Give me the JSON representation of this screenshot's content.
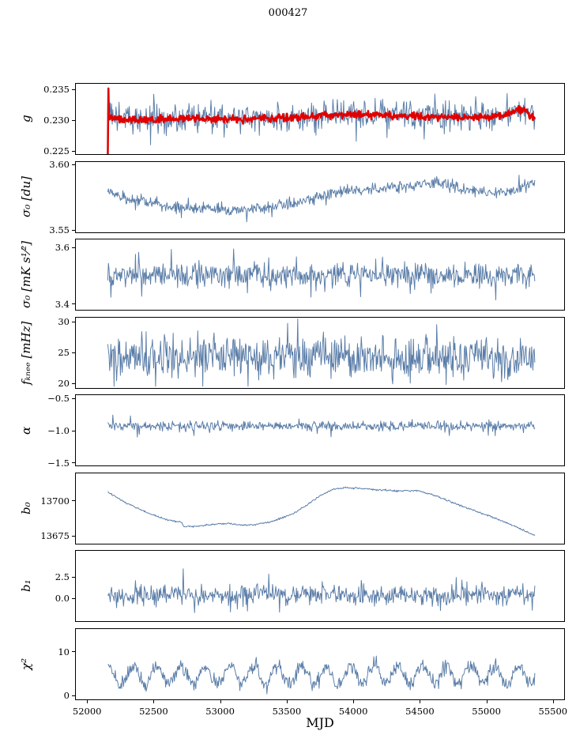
{
  "figure": {
    "title": "000427",
    "xlabel": "MJD",
    "background": "#ffffff",
    "line_color": "#5a7da8",
    "overlay_color": "#e00000",
    "axis_color": "#000000"
  },
  "chart_data": {
    "type": "line",
    "title": "000427",
    "xlabel": "MJD",
    "xlim": [
      51910,
      55590
    ],
    "x_data_range": [
      52120,
      55400
    ],
    "xticks": [
      52000,
      52500,
      53000,
      53500,
      54000,
      54500,
      55000,
      55500
    ],
    "xtick_labels": [
      "52000",
      "52500",
      "53000",
      "53500",
      "54000",
      "54500",
      "55000",
      "55500"
    ],
    "legend": "none",
    "grid": false,
    "panels": [
      {
        "id": "g",
        "ylabel": "g",
        "ylim": [
          0.2243,
          0.236
        ],
        "yticks": [
          0.225,
          0.23,
          0.235
        ],
        "ytick_labels": [
          "0.225",
          "0.230",
          "0.235"
        ],
        "series": [
          {
            "name": "g-daily",
            "color": "#5a7da8",
            "width": 1.0,
            "noise": 0.0011,
            "seed": 3,
            "tail": {
              "p": 0.05,
              "scale": 1.8
            },
            "trend": [
              [
                52120,
                0.231
              ],
              [
                52200,
                0.2303
              ],
              [
                52350,
                0.2301
              ],
              [
                52500,
                0.23
              ],
              [
                52650,
                0.2302
              ],
              [
                52800,
                0.2303
              ],
              [
                53000,
                0.2304
              ],
              [
                53200,
                0.2303
              ],
              [
                53400,
                0.2303
              ],
              [
                53600,
                0.2305
              ],
              [
                53800,
                0.2307
              ],
              [
                54000,
                0.2309
              ],
              [
                54200,
                0.2309
              ],
              [
                54400,
                0.2307
              ],
              [
                54600,
                0.2306
              ],
              [
                54800,
                0.2305
              ],
              [
                55000,
                0.2305
              ],
              [
                55150,
                0.2307
              ],
              [
                55250,
                0.2316
              ],
              [
                55320,
                0.2318
              ],
              [
                55400,
                0.23
              ]
            ]
          },
          {
            "name": "g-smoothed",
            "color": "#e00000",
            "width": 2.6,
            "noise": 0.0003,
            "seed": 5,
            "trend": [
              [
                52120,
                0.224
              ],
              [
                52124,
                0.2358
              ],
              [
                52130,
                0.2306
              ],
              [
                52200,
                0.2301
              ],
              [
                52400,
                0.23
              ],
              [
                52600,
                0.2301
              ],
              [
                52800,
                0.2302
              ],
              [
                53000,
                0.2302
              ],
              [
                53200,
                0.2302
              ],
              [
                53400,
                0.2303
              ],
              [
                53600,
                0.2305
              ],
              [
                53800,
                0.2307
              ],
              [
                54000,
                0.2309
              ],
              [
                54150,
                0.2309
              ],
              [
                54300,
                0.2307
              ],
              [
                54500,
                0.2306
              ],
              [
                54700,
                0.2305
              ],
              [
                54900,
                0.2304
              ],
              [
                55050,
                0.2305
              ],
              [
                55150,
                0.2307
              ],
              [
                55250,
                0.2315
              ],
              [
                55320,
                0.2317
              ],
              [
                55400,
                0.2302
              ]
            ]
          }
        ]
      },
      {
        "id": "sigma0-du",
        "ylabel": "σ₀ [du]",
        "ylim": [
          3.5476,
          3.6024
        ],
        "yticks": [
          3.55,
          3.6
        ],
        "ytick_labels": [
          "3.55",
          "3.60"
        ],
        "series": [
          {
            "name": "sigma0-du",
            "color": "#5a7da8",
            "width": 1.0,
            "noise": 0.0022,
            "seed": 7,
            "tail": {
              "p": 0.04,
              "scale": 2.0
            },
            "trend": [
              [
                52120,
                3.579
              ],
              [
                52250,
                3.574
              ],
              [
                52400,
                3.5715
              ],
              [
                52550,
                3.5685
              ],
              [
                52700,
                3.567
              ],
              [
                52850,
                3.566
              ],
              [
                53000,
                3.5655
              ],
              [
                53150,
                3.5648
              ],
              [
                53300,
                3.566
              ],
              [
                53450,
                3.568
              ],
              [
                53600,
                3.5715
              ],
              [
                53750,
                3.576
              ],
              [
                53900,
                3.579
              ],
              [
                54050,
                3.5805
              ],
              [
                54200,
                3.582
              ],
              [
                54350,
                3.583
              ],
              [
                54500,
                3.584
              ],
              [
                54650,
                3.5855
              ],
              [
                54750,
                3.584
              ],
              [
                54850,
                3.5815
              ],
              [
                54950,
                3.579
              ],
              [
                55050,
                3.5785
              ],
              [
                55150,
                3.5795
              ],
              [
                55250,
                3.581
              ],
              [
                55350,
                3.5845
              ],
              [
                55400,
                3.586
              ]
            ]
          }
        ]
      },
      {
        "id": "sigma0-mk",
        "ylabel": "σ₀ [mK s¹⁄²]",
        "ylim": [
          3.375,
          3.63
        ],
        "yticks": [
          3.4,
          3.6
        ],
        "ytick_labels": [
          "3.4",
          "3.6"
        ],
        "series": [
          {
            "name": "sigma0-mk",
            "color": "#5a7da8",
            "width": 1.0,
            "noise": 0.021,
            "seed": 11,
            "tail": {
              "p": 0.05,
              "scale": 2.2
            },
            "trend": [
              [
                52120,
                3.502
              ],
              [
                52400,
                3.5
              ],
              [
                52700,
                3.503
              ],
              [
                53000,
                3.5
              ],
              [
                53300,
                3.503
              ],
              [
                53600,
                3.5
              ],
              [
                53900,
                3.503
              ],
              [
                54200,
                3.5
              ],
              [
                54500,
                3.502
              ],
              [
                54800,
                3.5
              ],
              [
                55100,
                3.502
              ],
              [
                55400,
                3.498
              ]
            ]
          }
        ]
      },
      {
        "id": "fknee",
        "ylabel": "fₖₙₑₑ [mHz]",
        "ylim": [
          19.1,
          30.8
        ],
        "yticks": [
          20,
          25,
          30
        ],
        "ytick_labels": [
          "20",
          "25",
          "30"
        ],
        "series": [
          {
            "name": "fknee",
            "color": "#5a7da8",
            "width": 1.0,
            "noise": 1.7,
            "seed": 13,
            "tail": {
              "p": 0.05,
              "scale": 1.8
            },
            "clip": [
              19.4,
              30.6
            ],
            "trend": [
              [
                52120,
                24.6
              ],
              [
                53500,
                24.4
              ],
              [
                55400,
                24.2
              ]
            ]
          }
        ]
      },
      {
        "id": "alpha",
        "ylabel": "α",
        "ylim": [
          -1.56,
          -0.44
        ],
        "yticks": [
          -1.5,
          -1.0,
          -0.5
        ],
        "ytick_labels": [
          "−1.5",
          "−1.0",
          "−0.5"
        ],
        "series": [
          {
            "name": "alpha",
            "color": "#5a7da8",
            "width": 1.0,
            "noise": 0.035,
            "seed": 17,
            "tail": {
              "p": 0.04,
              "scale": 2.6
            },
            "trend": [
              [
                52120,
                -0.93
              ],
              [
                55400,
                -0.93
              ]
            ]
          }
        ]
      },
      {
        "id": "b0",
        "ylabel": "b₀",
        "ylim": [
          13669,
          13720
        ],
        "yticks": [
          13675,
          13700
        ],
        "ytick_labels": [
          "13675",
          "13700"
        ],
        "series": [
          {
            "name": "b0",
            "color": "#5a7da8",
            "width": 1.0,
            "noise": 0.3,
            "seed": 19,
            "trend": [
              [
                52120,
                13706.5
              ],
              [
                52250,
                13699
              ],
              [
                52400,
                13692.5
              ],
              [
                52550,
                13687
              ],
              [
                52690,
                13684.2
              ],
              [
                52705,
                13681.3
              ],
              [
                52800,
                13681.8
              ],
              [
                52950,
                13683.2
              ],
              [
                53050,
                13683.8
              ],
              [
                53150,
                13682.2
              ],
              [
                53250,
                13682.8
              ],
              [
                53400,
                13685.5
              ],
              [
                53550,
                13691
              ],
              [
                53650,
                13697
              ],
              [
                53750,
                13704
              ],
              [
                53850,
                13708.5
              ],
              [
                53950,
                13709.5
              ],
              [
                54050,
                13709
              ],
              [
                54200,
                13708
              ],
              [
                54350,
                13707.2
              ],
              [
                54500,
                13707.5
              ],
              [
                54570,
                13705.5
              ],
              [
                54650,
                13703.5
              ],
              [
                54750,
                13699.5
              ],
              [
                54850,
                13696
              ],
              [
                54950,
                13692.5
              ],
              [
                55050,
                13689
              ],
              [
                55150,
                13685.5
              ],
              [
                55250,
                13681.5
              ],
              [
                55330,
                13678
              ],
              [
                55400,
                13675
              ]
            ]
          }
        ]
      },
      {
        "id": "b1",
        "ylabel": "b₁",
        "ylim": [
          -2.8,
          5.6
        ],
        "yticks": [
          0.0,
          2.5
        ],
        "ytick_labels": [
          "0.0",
          "2.5"
        ],
        "series": [
          {
            "name": "b1",
            "color": "#5a7da8",
            "width": 1.0,
            "noise": 0.55,
            "seed": 23,
            "tail": {
              "p": 0.06,
              "scale": 2.0
            },
            "spikes": [
              [
                52700,
                3.45
              ],
              [
                53060,
                -1.7
              ],
              [
                54880,
                1.9
              ],
              [
                55380,
                -1.5
              ]
            ],
            "trend": [
              [
                52120,
                0.3
              ],
              [
                55400,
                0.25
              ]
            ]
          }
        ]
      },
      {
        "id": "chi2",
        "ylabel": "χ²",
        "ylim": [
          -1.0,
          15.3
        ],
        "yticks": [
          0,
          10
        ],
        "ytick_labels": [
          "0",
          "10"
        ],
        "series": [
          {
            "name": "chi2",
            "color": "#5a7da8",
            "width": 1.0,
            "noise": 0.8,
            "seed": 29,
            "osc": {
              "amp": 2.0,
              "period": 185,
              "phase": 1.2
            },
            "tail": {
              "p": 0.04,
              "scale": 1.8
            },
            "clip": [
              0.2,
              14.0
            ],
            "trend": [
              [
                52120,
                4.6
              ],
              [
                55400,
                4.7
              ]
            ]
          }
        ]
      }
    ]
  }
}
